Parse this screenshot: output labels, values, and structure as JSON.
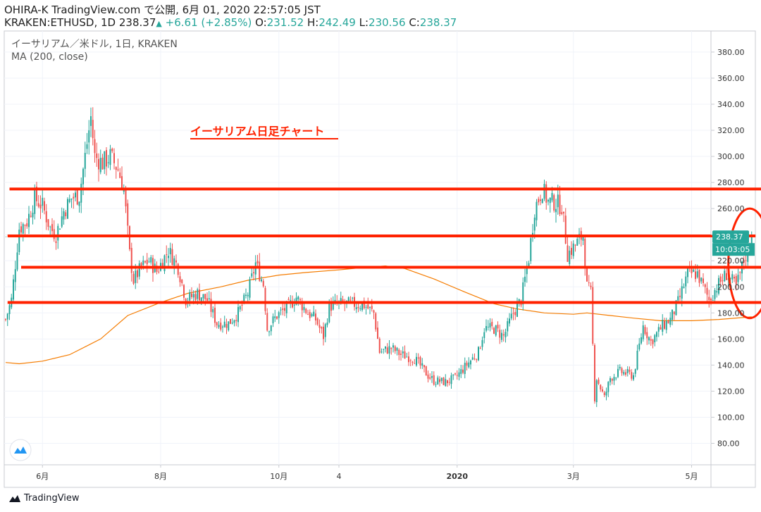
{
  "header": {
    "line1": "OHIRA-K TradingView.com で公開, 6月 01, 2020 22:57:05 JST",
    "symbol": "KRAKEN:ETHUSD, 1D",
    "price": "238.37",
    "change": "+6.61 (+2.85%)",
    "o_label": "O:",
    "o": "231.52",
    "h_label": "H:",
    "h": "242.49",
    "l_label": "L:",
    "l": "230.56",
    "c_label": "C:",
    "c": "238.37"
  },
  "legend": {
    "title": "イーサリアム／米ドル, 1日, KRAKEN",
    "indicator": "MA (200, close)"
  },
  "footer": {
    "brand": "TradingView"
  },
  "colors": {
    "up": "#26a69a",
    "down": "#ef5350",
    "ma": "#f57c00",
    "annotation": "#ff2200"
  },
  "chart_data": {
    "type": "candlestick",
    "title": "イーサリアム／米ドル, 1日, KRAKEN",
    "annotation_title": "イーサリアム日足チャート",
    "ylim": [
      68,
      395
    ],
    "yticks": [
      80,
      100,
      120,
      140,
      160,
      180,
      200,
      220,
      240,
      260,
      280,
      300,
      320,
      340,
      360,
      380
    ],
    "ytick_labels": [
      "80.00",
      "100.00",
      "120.00",
      "140.00",
      "160.00",
      "180.00",
      "200.00",
      "220.00",
      "240.00",
      "260.00",
      "280.00",
      "300.00",
      "320.00",
      "340.00",
      "360.00",
      "380.00"
    ],
    "x_start": "2019-05-13",
    "x_end": "2020-06-01",
    "xticks": [
      {
        "date": "2019-06-01",
        "label": "6月"
      },
      {
        "date": "2019-08-01",
        "label": "8月"
      },
      {
        "date": "2019-10-01",
        "label": "10月"
      },
      {
        "date": "2019-11-01",
        "label": "4"
      },
      {
        "date": "2020-01-01",
        "label": "2020"
      },
      {
        "date": "2020-03-01",
        "label": "3月"
      },
      {
        "date": "2020-05-01",
        "label": "5月"
      }
    ],
    "last_price": "238.37",
    "countdown": "10:03:05",
    "ma_label": "MA (200, close)",
    "price_path": [
      [
        "2019-05-13",
        175
      ],
      [
        "2019-05-16",
        190
      ],
      [
        "2019-05-20",
        245
      ],
      [
        "2019-05-24",
        250
      ],
      [
        "2019-05-28",
        268
      ],
      [
        "2019-06-01",
        262
      ],
      [
        "2019-06-05",
        245
      ],
      [
        "2019-06-08",
        240
      ],
      [
        "2019-06-12",
        258
      ],
      [
        "2019-06-16",
        268
      ],
      [
        "2019-06-20",
        270
      ],
      [
        "2019-06-23",
        300
      ],
      [
        "2019-06-26",
        330
      ],
      [
        "2019-06-28",
        300
      ],
      [
        "2019-07-02",
        295
      ],
      [
        "2019-07-06",
        300
      ],
      [
        "2019-07-10",
        290
      ],
      [
        "2019-07-13",
        275
      ],
      [
        "2019-07-16",
        225
      ],
      [
        "2019-07-18",
        205
      ],
      [
        "2019-07-22",
        215
      ],
      [
        "2019-07-26",
        220
      ],
      [
        "2019-07-30",
        212
      ],
      [
        "2019-08-05",
        228
      ],
      [
        "2019-08-10",
        215
      ],
      [
        "2019-08-14",
        190
      ],
      [
        "2019-08-20",
        195
      ],
      [
        "2019-08-25",
        190
      ],
      [
        "2019-08-30",
        172
      ],
      [
        "2019-09-05",
        172
      ],
      [
        "2019-09-10",
        180
      ],
      [
        "2019-09-15",
        195
      ],
      [
        "2019-09-19",
        218
      ],
      [
        "2019-09-23",
        202
      ],
      [
        "2019-09-25",
        168
      ],
      [
        "2019-09-30",
        178
      ],
      [
        "2019-10-06",
        185
      ],
      [
        "2019-10-10",
        192
      ],
      [
        "2019-10-16",
        180
      ],
      [
        "2019-10-20",
        175
      ],
      [
        "2019-10-24",
        162
      ],
      [
        "2019-10-27",
        185
      ],
      [
        "2019-11-01",
        187
      ],
      [
        "2019-11-08",
        187
      ],
      [
        "2019-11-14",
        186
      ],
      [
        "2019-11-19",
        180
      ],
      [
        "2019-11-22",
        150
      ],
      [
        "2019-11-28",
        153
      ],
      [
        "2019-12-03",
        148
      ],
      [
        "2019-12-10",
        145
      ],
      [
        "2019-12-17",
        132
      ],
      [
        "2019-12-20",
        128
      ],
      [
        "2019-12-26",
        127
      ],
      [
        "2019-12-31",
        130
      ],
      [
        "2020-01-07",
        142
      ],
      [
        "2020-01-12",
        150
      ],
      [
        "2020-01-15",
        168
      ],
      [
        "2020-01-20",
        168
      ],
      [
        "2020-01-25",
        162
      ],
      [
        "2020-01-30",
        180
      ],
      [
        "2020-02-03",
        190
      ],
      [
        "2020-02-07",
        222
      ],
      [
        "2020-02-10",
        260
      ],
      [
        "2020-02-14",
        275
      ],
      [
        "2020-02-17",
        265
      ],
      [
        "2020-02-20",
        265
      ],
      [
        "2020-02-24",
        262
      ],
      [
        "2020-02-27",
        225
      ],
      [
        "2020-03-02",
        232
      ],
      [
        "2020-03-06",
        240
      ],
      [
        "2020-03-08",
        200
      ],
      [
        "2020-03-10",
        195
      ],
      [
        "2020-03-12",
        115
      ],
      [
        "2020-03-13",
        130
      ],
      [
        "2020-03-17",
        115
      ],
      [
        "2020-03-20",
        130
      ],
      [
        "2020-03-25",
        135
      ],
      [
        "2020-04-01",
        132
      ],
      [
        "2020-04-06",
        170
      ],
      [
        "2020-04-10",
        158
      ],
      [
        "2020-04-16",
        170
      ],
      [
        "2020-04-20",
        175
      ],
      [
        "2020-04-24",
        188
      ],
      [
        "2020-04-29",
        210
      ],
      [
        "2020-05-04",
        210
      ],
      [
        "2020-05-10",
        190
      ],
      [
        "2020-05-14",
        200
      ],
      [
        "2020-05-19",
        210
      ],
      [
        "2020-05-24",
        200
      ],
      [
        "2020-05-28",
        220
      ],
      [
        "2020-06-01",
        238
      ]
    ],
    "ma_path": [
      [
        "2019-05-13",
        142
      ],
      [
        "2019-05-20",
        141
      ],
      [
        "2019-06-01",
        143
      ],
      [
        "2019-06-15",
        148
      ],
      [
        "2019-07-01",
        160
      ],
      [
        "2019-07-15",
        178
      ],
      [
        "2019-08-01",
        188
      ],
      [
        "2019-08-15",
        195
      ],
      [
        "2019-09-01",
        200
      ],
      [
        "2019-09-15",
        205
      ],
      [
        "2019-10-01",
        209
      ],
      [
        "2019-10-15",
        211
      ],
      [
        "2019-11-01",
        213
      ],
      [
        "2019-11-15",
        215
      ],
      [
        "2019-11-25",
        216
      ],
      [
        "2019-12-05",
        214
      ],
      [
        "2019-12-20",
        206
      ],
      [
        "2020-01-05",
        196
      ],
      [
        "2020-01-20",
        187
      ],
      [
        "2020-02-01",
        183
      ],
      [
        "2020-02-15",
        180
      ],
      [
        "2020-03-01",
        179
      ],
      [
        "2020-03-08",
        180
      ],
      [
        "2020-03-20",
        178
      ],
      [
        "2020-04-01",
        176
      ],
      [
        "2020-04-15",
        174
      ],
      [
        "2020-05-01",
        174
      ],
      [
        "2020-05-15",
        175
      ],
      [
        "2020-06-01",
        177
      ]
    ],
    "horizontal_lines": [
      {
        "price": 275,
        "from": "2019-05-15",
        "to": "2020-06-10"
      },
      {
        "price": 239,
        "from": "2019-05-14",
        "to": "2020-06-03"
      },
      {
        "price": 215,
        "from": "2019-05-21",
        "to": "2020-06-07"
      },
      {
        "price": 188,
        "from": "2019-05-14",
        "to": "2020-06-08"
      }
    ],
    "highlight_ellipse": {
      "center_date": "2020-05-31",
      "center_price": 218,
      "radius_days": 11,
      "radius_price": 42
    }
  }
}
